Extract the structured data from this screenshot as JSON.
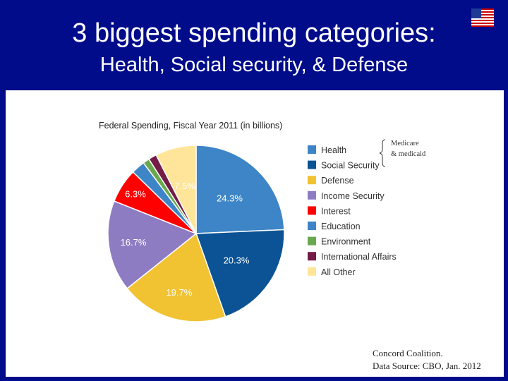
{
  "slide": {
    "title_line1": "3 biggest spending categories:",
    "title_line2": "Health, Social security, & Defense",
    "background_color": "#000c8a",
    "flag_icon": "us-flag-icon"
  },
  "annotation": {
    "line1": "Medicare",
    "line2": "& medicaid"
  },
  "credit": {
    "line1": "Concord Coalition.",
    "line2": "Data Source: CBO, Jan. 2012"
  },
  "chart_data": {
    "type": "pie",
    "title": "Federal Spending, Fiscal Year 2011 (in billions)",
    "legend_position": "right",
    "slices": [
      {
        "name": "Health",
        "value": 24.3,
        "label": "24.3%",
        "color": "#3d85c6"
      },
      {
        "name": "Social Security",
        "value": 20.3,
        "label": "20.3%",
        "color": "#0b5394"
      },
      {
        "name": "Defense",
        "value": 19.7,
        "label": "19.7%",
        "color": "#f1c232"
      },
      {
        "name": "Income Security",
        "value": 16.7,
        "label": "16.7%",
        "color": "#8e7cc3"
      },
      {
        "name": "Interest",
        "value": 6.3,
        "label": "6.3%",
        "color": "#ff0000"
      },
      {
        "name": "Education",
        "value": 2.5,
        "label": "",
        "color": "#3d85c6"
      },
      {
        "name": "Environment",
        "value": 1.2,
        "label": "",
        "color": "#6aa84f"
      },
      {
        "name": "International Affairs",
        "value": 1.5,
        "label": "",
        "color": "#741b47"
      },
      {
        "name": "All Other",
        "value": 7.5,
        "label": "7.5%",
        "color": "#ffe599"
      }
    ]
  }
}
